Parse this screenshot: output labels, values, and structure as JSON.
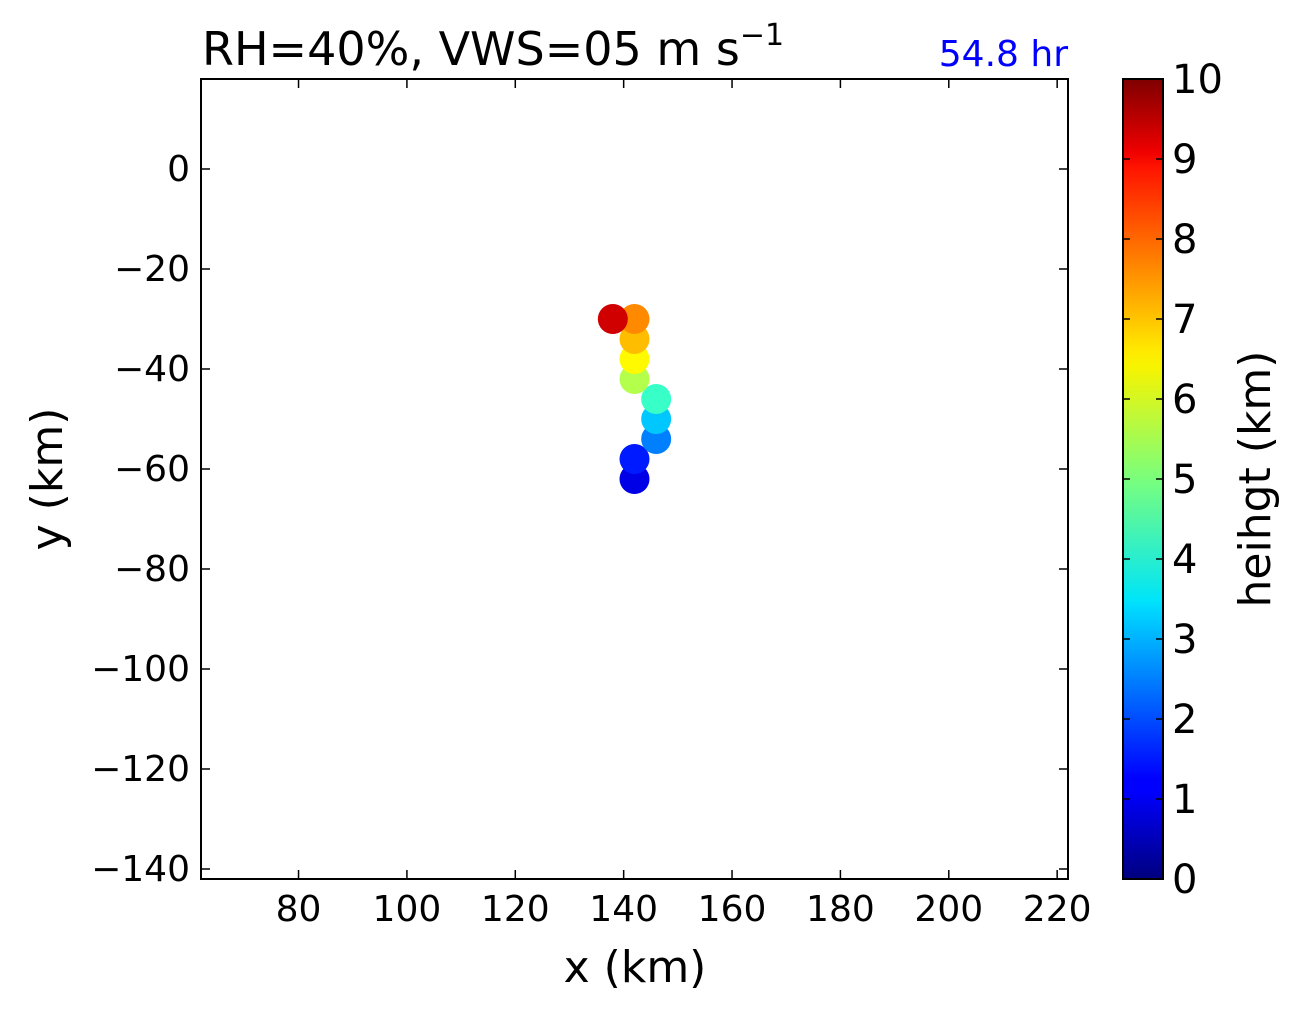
{
  "chart_data": {
    "type": "scatter",
    "title": "RH=40%, VWS=05 m s",
    "title_superscript": "−1",
    "annotation": "54.8 hr",
    "annotation_color": "#0000ff",
    "xlabel": "x (km)",
    "ylabel": "y (km)",
    "xlim": [
      62,
      222
    ],
    "ylim": [
      -142,
      18
    ],
    "xticks": [
      80,
      100,
      120,
      140,
      160,
      180,
      200,
      220
    ],
    "yticks": [
      0,
      -20,
      -40,
      -60,
      -80,
      -100,
      -120,
      -140
    ],
    "xtick_labels": [
      "80",
      "100",
      "120",
      "140",
      "160",
      "180",
      "200",
      "220"
    ],
    "ytick_labels": [
      "0",
      "−20",
      "−40",
      "−60",
      "−80",
      "−100",
      "−120",
      "−140"
    ],
    "colorbar": {
      "label": "heihgt (km)",
      "range": [
        0,
        10
      ],
      "colormap": "jet",
      "ticks": [
        0,
        1,
        2,
        3,
        4,
        5,
        6,
        7,
        8,
        9,
        10
      ],
      "tick_labels": [
        "0",
        "1",
        "2",
        "3",
        "4",
        "5",
        "6",
        "7",
        "8",
        "9",
        "10"
      ]
    },
    "points": [
      {
        "x": 142,
        "y": -62,
        "height": 1.0
      },
      {
        "x": 142,
        "y": -58,
        "height": 1.5
      },
      {
        "x": 146,
        "y": -54,
        "height": 2.5
      },
      {
        "x": 146,
        "y": -50,
        "height": 3.2
      },
      {
        "x": 146,
        "y": -46,
        "height": 4.3
      },
      {
        "x": 142,
        "y": -42,
        "height": 5.5
      },
      {
        "x": 142,
        "y": -38,
        "height": 6.3
      },
      {
        "x": 142,
        "y": -34,
        "height": 6.9
      },
      {
        "x": 142,
        "y": -30,
        "height": 7.4
      },
      {
        "x": 138,
        "y": -30,
        "height": 9.2
      }
    ],
    "grid": false,
    "legend": "none"
  }
}
